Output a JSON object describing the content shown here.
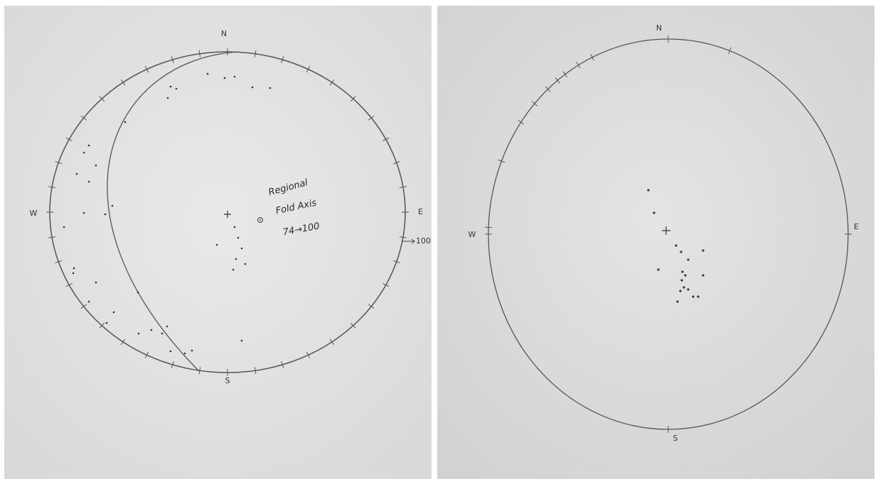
{
  "left": {
    "labels": {
      "north": "N",
      "south": "S",
      "east": "E",
      "west": "W"
    },
    "annotation": [
      "Regional",
      "Fold Axis",
      "74→100"
    ],
    "arrow_label": "100"
  },
  "right": {
    "labels": {
      "north": "N",
      "south": "S",
      "east": "E",
      "west": "W"
    }
  }
}
